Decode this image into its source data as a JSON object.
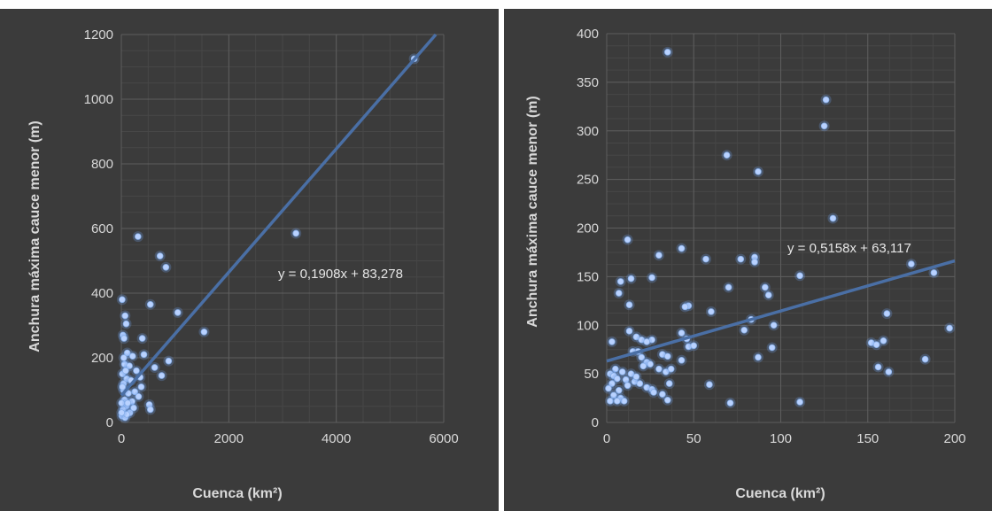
{
  "chart_data": [
    {
      "type": "scatter",
      "title": "",
      "xlabel": "Cuenca (km²)",
      "ylabel": "Anchura máxima cauce menor (m)",
      "xlim": [
        0,
        6000
      ],
      "ylim": [
        0,
        1200
      ],
      "xticks": [
        "0",
        "2000",
        "4000",
        "6000"
      ],
      "yticks": [
        "0",
        "200",
        "400",
        "600",
        "800",
        "1000",
        "1200"
      ],
      "grid": true,
      "trendline": {
        "slope": 0.1908,
        "intercept": 83.278,
        "label": "y = 0,1908x + 83,278"
      },
      "points": [
        [
          5450,
          1125
        ],
        [
          3250,
          585
        ],
        [
          310,
          575
        ],
        [
          720,
          515
        ],
        [
          830,
          480
        ],
        [
          15,
          380
        ],
        [
          540,
          365
        ],
        [
          1050,
          340
        ],
        [
          70,
          330
        ],
        [
          90,
          305
        ],
        [
          1540,
          280
        ],
        [
          30,
          270
        ],
        [
          50,
          260
        ],
        [
          390,
          260
        ],
        [
          110,
          215
        ],
        [
          210,
          205
        ],
        [
          420,
          210
        ],
        [
          880,
          190
        ],
        [
          60,
          180
        ],
        [
          150,
          175
        ],
        [
          620,
          170
        ],
        [
          280,
          160
        ],
        [
          20,
          150
        ],
        [
          750,
          145
        ],
        [
          100,
          135
        ],
        [
          180,
          130
        ],
        [
          370,
          110
        ],
        [
          40,
          120
        ],
        [
          250,
          95
        ],
        [
          130,
          90
        ],
        [
          320,
          80
        ],
        [
          60,
          70
        ],
        [
          200,
          65
        ],
        [
          520,
          55
        ],
        [
          90,
          50
        ],
        [
          540,
          40
        ],
        [
          30,
          40
        ],
        [
          160,
          30
        ],
        [
          10,
          20
        ],
        [
          70,
          15
        ],
        [
          5,
          60
        ],
        [
          40,
          100
        ],
        [
          80,
          160
        ],
        [
          120,
          60
        ],
        [
          20,
          110
        ],
        [
          100,
          25
        ],
        [
          230,
          45
        ],
        [
          350,
          140
        ],
        [
          5,
          30
        ],
        [
          45,
          200
        ]
      ]
    },
    {
      "type": "scatter",
      "title": "",
      "xlabel": "Cuenca (km²)",
      "ylabel": "Anchura máxima cauce menor (m)",
      "xlim": [
        0,
        200
      ],
      "ylim": [
        0,
        400
      ],
      "xticks": [
        "0",
        "50",
        "100",
        "150",
        "200"
      ],
      "yticks": [
        "0",
        "50",
        "100",
        "150",
        "200",
        "250",
        "300",
        "350",
        "400"
      ],
      "grid": true,
      "trendline": {
        "slope": 0.5158,
        "intercept": 63.117,
        "label": "y = 0,5158x + 63,117"
      },
      "points": [
        [
          35,
          381
        ],
        [
          126,
          332
        ],
        [
          125,
          305
        ],
        [
          69,
          275
        ],
        [
          87,
          258
        ],
        [
          130,
          210
        ],
        [
          12,
          188
        ],
        [
          43,
          179
        ],
        [
          30,
          172
        ],
        [
          57,
          168
        ],
        [
          77,
          168
        ],
        [
          85,
          170
        ],
        [
          85,
          165
        ],
        [
          175,
          163
        ],
        [
          188,
          154
        ],
        [
          26,
          149
        ],
        [
          14,
          148
        ],
        [
          8,
          145
        ],
        [
          111,
          151
        ],
        [
          91,
          139
        ],
        [
          70,
          139
        ],
        [
          7,
          133
        ],
        [
          93,
          131
        ],
        [
          13,
          121
        ],
        [
          47,
          120
        ],
        [
          45,
          119
        ],
        [
          60,
          114
        ],
        [
          161,
          112
        ],
        [
          83,
          106
        ],
        [
          197,
          97
        ],
        [
          96,
          100
        ],
        [
          79,
          95
        ],
        [
          43,
          92
        ],
        [
          13,
          94
        ],
        [
          17,
          88
        ],
        [
          46,
          86
        ],
        [
          26,
          85
        ],
        [
          20,
          85
        ],
        [
          23,
          83
        ],
        [
          3,
          83
        ],
        [
          159,
          84
        ],
        [
          152,
          82
        ],
        [
          155,
          80
        ],
        [
          47,
          78
        ],
        [
          50,
          79
        ],
        [
          95,
          77
        ],
        [
          15,
          73
        ],
        [
          18,
          73
        ],
        [
          32,
          70
        ],
        [
          35,
          68
        ],
        [
          87,
          67
        ],
        [
          20,
          67
        ],
        [
          183,
          65
        ],
        [
          43,
          64
        ],
        [
          23,
          62
        ],
        [
          25,
          60
        ],
        [
          30,
          55
        ],
        [
          34,
          52
        ],
        [
          37,
          55
        ],
        [
          156,
          57
        ],
        [
          162,
          52
        ],
        [
          5,
          55
        ],
        [
          9,
          52
        ],
        [
          14,
          50
        ],
        [
          2,
          50
        ],
        [
          4,
          48
        ],
        [
          6,
          45
        ],
        [
          11,
          44
        ],
        [
          16,
          42
        ],
        [
          19,
          40
        ],
        [
          3,
          40
        ],
        [
          59,
          39
        ],
        [
          36,
          40
        ],
        [
          1,
          35
        ],
        [
          7,
          33
        ],
        [
          12,
          38
        ],
        [
          23,
          36
        ],
        [
          26,
          34
        ],
        [
          27,
          31
        ],
        [
          32,
          29
        ],
        [
          4,
          28
        ],
        [
          8,
          25
        ],
        [
          10,
          22
        ],
        [
          2,
          22
        ],
        [
          6,
          22
        ],
        [
          35,
          23
        ],
        [
          71,
          20
        ],
        [
          111,
          21
        ],
        [
          17,
          47
        ],
        [
          21,
          58
        ]
      ]
    }
  ]
}
